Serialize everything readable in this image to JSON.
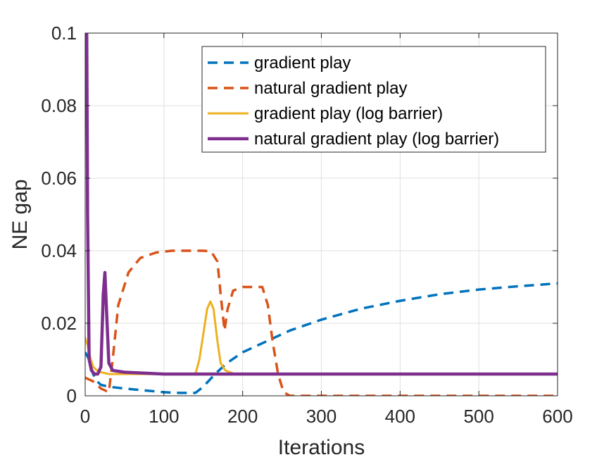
{
  "chart_data": {
    "type": "line",
    "title": "",
    "xlabel": "Iterations",
    "ylabel": "NE gap",
    "xlim": [
      0,
      600
    ],
    "ylim": [
      0,
      0.1
    ],
    "x_ticks": [
      0,
      100,
      200,
      300,
      400,
      500,
      600
    ],
    "x_tick_labels": [
      "0",
      "100",
      "200",
      "300",
      "400",
      "500",
      "600"
    ],
    "y_ticks": [
      0,
      0.02,
      0.04,
      0.06,
      0.08,
      0.1
    ],
    "y_tick_labels": [
      "0",
      "0.02",
      "0.04",
      "0.06",
      "0.08",
      "0.1"
    ],
    "grid": true,
    "legend_position": "top-right",
    "series": [
      {
        "name": "gradient play",
        "style": "dashed",
        "color": "#0072BD",
        "points": [
          [
            0,
            0.012
          ],
          [
            5,
            0.01
          ],
          [
            10,
            0.006
          ],
          [
            15,
            0.004
          ],
          [
            20,
            0.003
          ],
          [
            30,
            0.0025
          ],
          [
            50,
            0.002
          ],
          [
            75,
            0.0015
          ],
          [
            100,
            0.001
          ],
          [
            120,
            0.0008
          ],
          [
            140,
            0.0008
          ],
          [
            150,
            0.0025
          ],
          [
            165,
            0.006
          ],
          [
            180,
            0.009
          ],
          [
            200,
            0.012
          ],
          [
            230,
            0.015
          ],
          [
            260,
            0.018
          ],
          [
            300,
            0.021
          ],
          [
            350,
            0.024
          ],
          [
            400,
            0.0262
          ],
          [
            450,
            0.028
          ],
          [
            500,
            0.0293
          ],
          [
            550,
            0.0302
          ],
          [
            600,
            0.031
          ]
        ]
      },
      {
        "name": "natural gradient play",
        "style": "dashed",
        "color": "#D95319",
        "points": [
          [
            0,
            0.005
          ],
          [
            10,
            0.004
          ],
          [
            20,
            0.002
          ],
          [
            30,
            0.001
          ],
          [
            35,
            0.01
          ],
          [
            42,
            0.025
          ],
          [
            55,
            0.034
          ],
          [
            70,
            0.038
          ],
          [
            90,
            0.0395
          ],
          [
            110,
            0.04
          ],
          [
            150,
            0.04
          ],
          [
            160,
            0.0398
          ],
          [
            168,
            0.037
          ],
          [
            172,
            0.028
          ],
          [
            177,
            0.018
          ],
          [
            181,
            0.024
          ],
          [
            188,
            0.029
          ],
          [
            200,
            0.03
          ],
          [
            225,
            0.03
          ],
          [
            232,
            0.025
          ],
          [
            238,
            0.015
          ],
          [
            245,
            0.006
          ],
          [
            252,
            0.001
          ],
          [
            260,
            0
          ],
          [
            300,
            0
          ],
          [
            400,
            0
          ],
          [
            500,
            0
          ],
          [
            600,
            0
          ]
        ]
      },
      {
        "name": "gradient play (log barrier)",
        "style": "solid",
        "color": "#EDB120",
        "points": [
          [
            0,
            0.016
          ],
          [
            3,
            0.014
          ],
          [
            6,
            0.011
          ],
          [
            10,
            0.008
          ],
          [
            15,
            0.007
          ],
          [
            20,
            0.0065
          ],
          [
            30,
            0.006
          ],
          [
            60,
            0.006
          ],
          [
            120,
            0.006
          ],
          [
            140,
            0.006
          ],
          [
            145,
            0.01
          ],
          [
            150,
            0.017
          ],
          [
            155,
            0.024
          ],
          [
            159,
            0.026
          ],
          [
            163,
            0.024
          ],
          [
            168,
            0.015
          ],
          [
            172,
            0.009
          ],
          [
            178,
            0.007
          ],
          [
            190,
            0.006
          ],
          [
            250,
            0.006
          ],
          [
            400,
            0.006
          ],
          [
            600,
            0.006
          ]
        ]
      },
      {
        "name": "natural gradient play (log barrier)",
        "style": "solid",
        "color": "#7E2F8E",
        "points": [
          [
            0,
            0.1
          ],
          [
            2,
            0.1
          ],
          [
            3,
            0.05
          ],
          [
            5,
            0.01
          ],
          [
            8,
            0.007
          ],
          [
            12,
            0.006
          ],
          [
            16,
            0.006
          ],
          [
            20,
            0.008
          ],
          [
            23,
            0.028
          ],
          [
            25,
            0.034
          ],
          [
            27,
            0.024
          ],
          [
            30,
            0.009
          ],
          [
            35,
            0.007
          ],
          [
            50,
            0.0065
          ],
          [
            100,
            0.006
          ],
          [
            200,
            0.006
          ],
          [
            400,
            0.006
          ],
          [
            600,
            0.006
          ]
        ]
      }
    ]
  }
}
